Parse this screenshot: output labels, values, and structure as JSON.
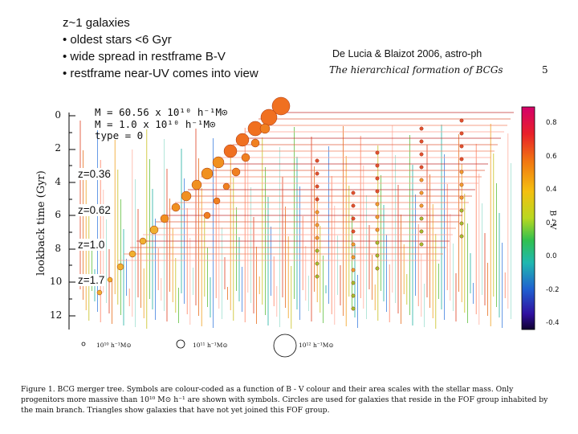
{
  "bullets": [
    "z~1 galaxies",
    "• oldest stars <6 Gyr",
    "• wide spread in restframe B-V",
    "• restframe near-UV comes into view"
  ],
  "credit": "De Lucia & Blaizot 2006, astro-ph",
  "paper_header": {
    "title": "The hierarchical formation of BCGs",
    "page": "5"
  },
  "figure": {
    "y_axis_label": "lookback time (Gyr)",
    "y_ticks": [
      "0",
      "2",
      "4",
      "6",
      "8",
      "10",
      "12"
    ],
    "redshift_labels": [
      "z=0.36",
      "z=0.62",
      "z=1.0",
      "z=1.7"
    ],
    "legend": {
      "mbcg": "M  = 60.56 x 10¹⁰ h⁻¹M⊙",
      "mmin": "M   = 1.0 x 10¹⁰ h⁻¹M⊙",
      "type": "type = 0"
    },
    "colorbar": {
      "label": "B - V",
      "ticks": [
        "0.8",
        "0.6",
        "0.4",
        "0.2",
        "0.0",
        "-0.2",
        "-0.4"
      ]
    },
    "mass_scale_labels": [
      "10¹⁰ h⁻¹M⊙",
      "10¹¹ h⁻¹M⊙",
      "10¹² h⁻¹M⊙"
    ],
    "caption": "Figure 1. BCG merger tree. Symbols are colour-coded as a function of B - V colour and their area scales with the stellar mass. Only progenitors more massive than 10¹⁰ M⊙ h⁻¹ are shown with symbols. Circles are used for galaxies that reside in the FOF group inhabited by the main branch. Triangles show galaxies that have not yet joined this FOF group."
  }
}
